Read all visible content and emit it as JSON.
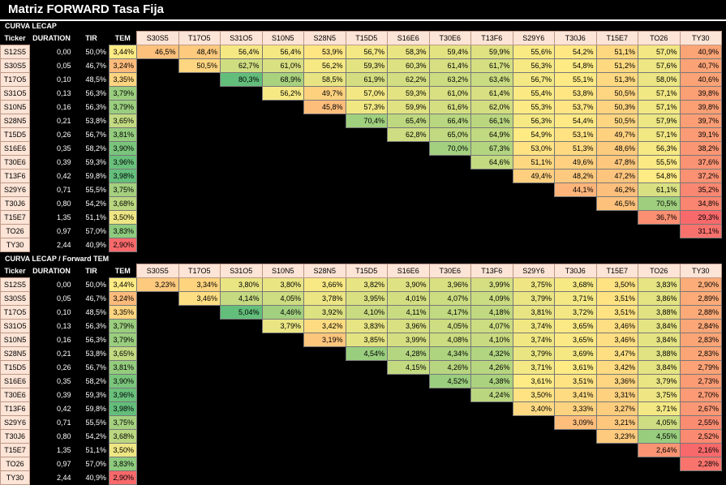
{
  "title": "Matriz FORWARD Tasa Fija",
  "colors": {
    "green": "#63be7b",
    "yellow": "#ffeb84",
    "red": "#f8696b"
  },
  "tickers": [
    "S12S5",
    "S30S5",
    "T17O5",
    "S31O5",
    "S10N5",
    "S28N5",
    "T15D5",
    "S16E6",
    "T30E6",
    "T13F6",
    "S29Y6",
    "T30J6",
    "T15E7",
    "TO26",
    "TY30"
  ],
  "matrix_cols": [
    "S30S5",
    "T17O5",
    "S31O5",
    "S10N5",
    "S28N5",
    "T15D5",
    "S16E6",
    "T30E6",
    "T13F6",
    "S29Y6",
    "T30J6",
    "T15E7",
    "TO26",
    "TY30"
  ],
  "curve": {
    "duration": [
      "0,00",
      "0,05",
      "0,10",
      "0,13",
      "0,16",
      "0,21",
      "0,26",
      "0,35",
      "0,39",
      "0,42",
      "0,71",
      "0,80",
      "1,35",
      "0,97",
      "2,44"
    ],
    "tir": [
      "50,0%",
      "46,7%",
      "48,5%",
      "56,3%",
      "56,3%",
      "53,8%",
      "56,7%",
      "58,2%",
      "59,3%",
      "59,8%",
      "55,5%",
      "54,2%",
      "51,1%",
      "57,0%",
      "40,9%"
    ],
    "tem": [
      "3,44%",
      "3,24%",
      "3,35%",
      "3,79%",
      "3,79%",
      "3,65%",
      "3,81%",
      "3,90%",
      "3,96%",
      "3,98%",
      "3,75%",
      "3,68%",
      "3,50%",
      "3,83%",
      "2,90%"
    ]
  },
  "section1": {
    "label": "CURVA LECAP",
    "headers": {
      "ticker": "Ticker",
      "duration": "DURATION",
      "tir": "TIR",
      "tem": "TEM"
    },
    "rows": [
      [
        "46,5%",
        "48,4%",
        "56,4%",
        "56,4%",
        "53,9%",
        "56,7%",
        "58,3%",
        "59,4%",
        "59,9%",
        "55,6%",
        "54,2%",
        "51,1%",
        "57,0%",
        "40,9%"
      ],
      [
        "",
        "50,5%",
        "62,7%",
        "61,0%",
        "56,2%",
        "59,3%",
        "60,3%",
        "61,4%",
        "61,7%",
        "56,3%",
        "54,8%",
        "51,2%",
        "57,6%",
        "40,7%"
      ],
      [
        "",
        "",
        "80,3%",
        "68,9%",
        "58,5%",
        "61,9%",
        "62,2%",
        "63,2%",
        "63,4%",
        "56,7%",
        "55,1%",
        "51,3%",
        "58,0%",
        "40,6%"
      ],
      [
        "",
        "",
        "",
        "56,2%",
        "49,7%",
        "57,0%",
        "59,3%",
        "61,0%",
        "61,4%",
        "55,4%",
        "53,8%",
        "50,5%",
        "57,1%",
        "39,8%"
      ],
      [
        "",
        "",
        "",
        "",
        "45,8%",
        "57,3%",
        "59,9%",
        "61,6%",
        "62,0%",
        "55,3%",
        "53,7%",
        "50,3%",
        "57,1%",
        "39,8%"
      ],
      [
        "",
        "",
        "",
        "",
        "",
        "70,4%",
        "65,4%",
        "66,4%",
        "66,1%",
        "56,3%",
        "54,4%",
        "50,5%",
        "57,9%",
        "39,7%"
      ],
      [
        "",
        "",
        "",
        "",
        "",
        "",
        "62,8%",
        "65,0%",
        "64,9%",
        "54,9%",
        "53,1%",
        "49,7%",
        "57,1%",
        "39,1%"
      ],
      [
        "",
        "",
        "",
        "",
        "",
        "",
        "",
        "70,0%",
        "67,3%",
        "53,0%",
        "51,3%",
        "48,6%",
        "56,3%",
        "38,2%"
      ],
      [
        "",
        "",
        "",
        "",
        "",
        "",
        "",
        "",
        "64,6%",
        "51,1%",
        "49,6%",
        "47,8%",
        "55,5%",
        "37,6%"
      ],
      [
        "",
        "",
        "",
        "",
        "",
        "",
        "",
        "",
        "",
        "49,4%",
        "48,2%",
        "47,2%",
        "54,8%",
        "37,2%"
      ],
      [
        "",
        "",
        "",
        "",
        "",
        "",
        "",
        "",
        "",
        "",
        "44,1%",
        "46,2%",
        "61,1%",
        "35,2%"
      ],
      [
        "",
        "",
        "",
        "",
        "",
        "",
        "",
        "",
        "",
        "",
        "",
        "46,5%",
        "70,5%",
        "34,8%"
      ],
      [
        "",
        "",
        "",
        "",
        "",
        "",
        "",
        "",
        "",
        "",
        "",
        "",
        "36,7%",
        "29,3%"
      ],
      [
        "",
        "",
        "",
        "",
        "",
        "",
        "",
        "",
        "",
        "",
        "",
        "",
        "",
        "31,1%"
      ],
      [
        "",
        "",
        "",
        "",
        "",
        "",
        "",
        "",
        "",
        "",
        "",
        "",
        "",
        ""
      ]
    ]
  },
  "section2": {
    "label": "CURVA LECAP  / Forward TEM",
    "headers": {
      "ticker": "Ticker",
      "duration": "DURATION",
      "tir": "TIR",
      "tem": "TEM"
    },
    "rows": [
      [
        "3,23%",
        "3,34%",
        "3,80%",
        "3,80%",
        "3,66%",
        "3,82%",
        "3,90%",
        "3,96%",
        "3,99%",
        "3,75%",
        "3,68%",
        "3,50%",
        "3,83%",
        "2,90%"
      ],
      [
        "",
        "3,46%",
        "4,14%",
        "4,05%",
        "3,78%",
        "3,95%",
        "4,01%",
        "4,07%",
        "4,09%",
        "3,79%",
        "3,71%",
        "3,51%",
        "3,86%",
        "2,89%"
      ],
      [
        "",
        "",
        "5,04%",
        "4,46%",
        "3,92%",
        "4,10%",
        "4,11%",
        "4,17%",
        "4,18%",
        "3,81%",
        "3,72%",
        "3,51%",
        "3,88%",
        "2,88%"
      ],
      [
        "",
        "",
        "",
        "3,79%",
        "3,42%",
        "3,83%",
        "3,96%",
        "4,05%",
        "4,07%",
        "3,74%",
        "3,65%",
        "3,46%",
        "3,84%",
        "2,84%"
      ],
      [
        "",
        "",
        "",
        "",
        "3,19%",
        "3,85%",
        "3,99%",
        "4,08%",
        "4,10%",
        "3,74%",
        "3,65%",
        "3,46%",
        "3,84%",
        "2,83%"
      ],
      [
        "",
        "",
        "",
        "",
        "",
        "4,54%",
        "4,28%",
        "4,34%",
        "4,32%",
        "3,79%",
        "3,69%",
        "3,47%",
        "3,88%",
        "2,83%"
      ],
      [
        "",
        "",
        "",
        "",
        "",
        "",
        "4,15%",
        "4,26%",
        "4,26%",
        "3,71%",
        "3,61%",
        "3,42%",
        "3,84%",
        "2,79%"
      ],
      [
        "",
        "",
        "",
        "",
        "",
        "",
        "",
        "4,52%",
        "4,38%",
        "3,61%",
        "3,51%",
        "3,36%",
        "3,79%",
        "2,73%"
      ],
      [
        "",
        "",
        "",
        "",
        "",
        "",
        "",
        "",
        "4,24%",
        "3,50%",
        "3,41%",
        "3,31%",
        "3,75%",
        "2,70%"
      ],
      [
        "",
        "",
        "",
        "",
        "",
        "",
        "",
        "",
        "",
        "3,40%",
        "3,33%",
        "3,27%",
        "3,71%",
        "2,67%"
      ],
      [
        "",
        "",
        "",
        "",
        "",
        "",
        "",
        "",
        "",
        "",
        "3,09%",
        "3,21%",
        "4,05%",
        "2,55%"
      ],
      [
        "",
        "",
        "",
        "",
        "",
        "",
        "",
        "",
        "",
        "",
        "",
        "3,23%",
        "4,55%",
        "2,52%"
      ],
      [
        "",
        "",
        "",
        "",
        "",
        "",
        "",
        "",
        "",
        "",
        "",
        "",
        "2,64%",
        "2,16%"
      ],
      [
        "",
        "",
        "",
        "",
        "",
        "",
        "",
        "",
        "",
        "",
        "",
        "",
        "",
        "2,28%"
      ],
      [
        "",
        "",
        "",
        "",
        "",
        "",
        "",
        "",
        "",
        "",
        "",
        "",
        "",
        ""
      ]
    ]
  }
}
